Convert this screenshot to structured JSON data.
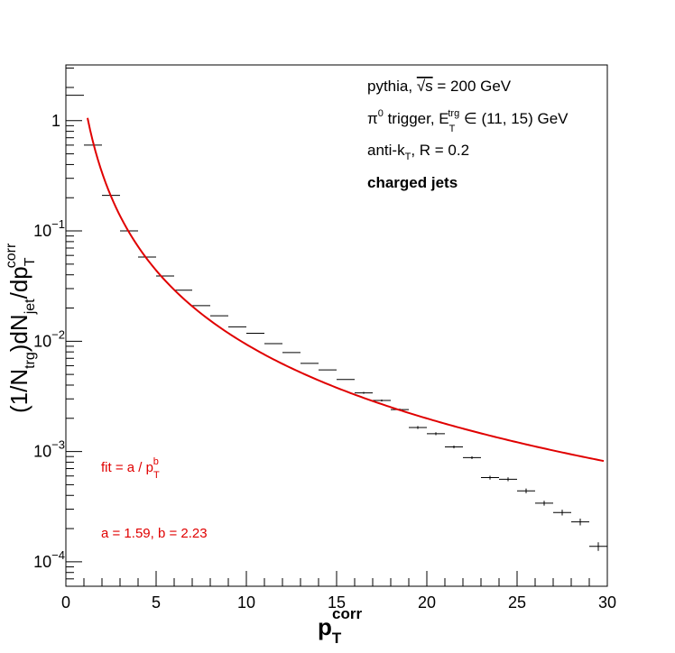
{
  "chart_data": {
    "type": "scatter",
    "xlabel": {
      "main": "p",
      "sub": "T",
      "sup": "corr"
    },
    "ylabel": {
      "p1": "(1/N",
      "s1": "trg",
      "p2": ")dN",
      "s2": "jet",
      "p3": "/dp",
      "sup": "corr",
      "sub": "T"
    },
    "xlim": [
      0,
      30
    ],
    "ylim": [
      6e-05,
      3.2
    ],
    "y_scale": "log",
    "x_ticks": [
      "0",
      "5",
      "10",
      "15",
      "20",
      "25",
      "30"
    ],
    "x_tick_values": [
      0,
      5,
      10,
      15,
      20,
      25,
      30
    ],
    "y_ticks": [
      {
        "value": 1,
        "base": "1",
        "exp": ""
      },
      {
        "value": 0.1,
        "base": "10",
        "exp": "−1"
      },
      {
        "value": 0.01,
        "base": "10",
        "exp": "−2"
      },
      {
        "value": 0.001,
        "base": "10",
        "exp": "−3"
      },
      {
        "value": 0.0001,
        "base": "10",
        "exp": "−4"
      }
    ],
    "grid": false,
    "series": [
      {
        "kind": "histogram",
        "color": "#000000",
        "x": [
          0.5,
          1.5,
          2.5,
          3.5,
          4.5,
          5.5,
          6.5,
          7.5,
          8.5,
          9.5,
          10.5,
          11.5,
          12.5,
          13.5,
          14.5,
          15.5,
          16.5,
          17.5,
          18.5,
          19.5,
          20.5,
          21.5,
          22.5,
          23.5,
          24.5,
          25.5,
          26.5,
          27.5,
          28.5,
          29.5
        ],
        "xerr": 0.5,
        "y": [
          1.7,
          0.6,
          0.21,
          0.1,
          0.058,
          0.039,
          0.029,
          0.021,
          0.017,
          0.0135,
          0.0118,
          0.0095,
          0.0079,
          0.0063,
          0.0055,
          0.0045,
          0.0034,
          0.0029,
          0.0024,
          0.00165,
          0.00145,
          0.0011,
          0.00088,
          0.00058,
          0.00056,
          0.00044,
          0.00034,
          0.00028,
          0.00023,
          0.000138
        ],
        "yerr_rel": [
          0,
          0.01,
          0.01,
          0.01,
          0.01,
          0.01,
          0.01,
          0.01,
          0.01,
          0.01,
          0.01,
          0.01,
          0.01,
          0.01,
          0.01,
          0.01,
          0.02,
          0.02,
          0.02,
          0.03,
          0.03,
          0.03,
          0.03,
          0.04,
          0.04,
          0.05,
          0.05,
          0.06,
          0.07,
          0.09
        ]
      },
      {
        "kind": "fit",
        "color": "#e00000",
        "a": 1.59,
        "b": 2.23,
        "x_range": [
          1.2,
          29.8
        ]
      }
    ],
    "annotations": {
      "line1": {
        "p1": "pythia,  ",
        "sqrt": "√s",
        "p2": " = 200 GeV"
      },
      "line2": {
        "pi": "π",
        "pi_sup": "0",
        "p1": " trigger, E",
        "sub": "T",
        "sup": "trg",
        "p2": " ∈ (11, 15) GeV"
      },
      "line3": {
        "p1": "anti-k",
        "sub": "T",
        "p2": ", R = 0.2"
      },
      "line4": "charged jets",
      "fit_formula": {
        "p1": "fit = a / p",
        "sub": "T",
        "sup": "b"
      },
      "fit_params": "a = 1.59, b = 2.23"
    }
  }
}
